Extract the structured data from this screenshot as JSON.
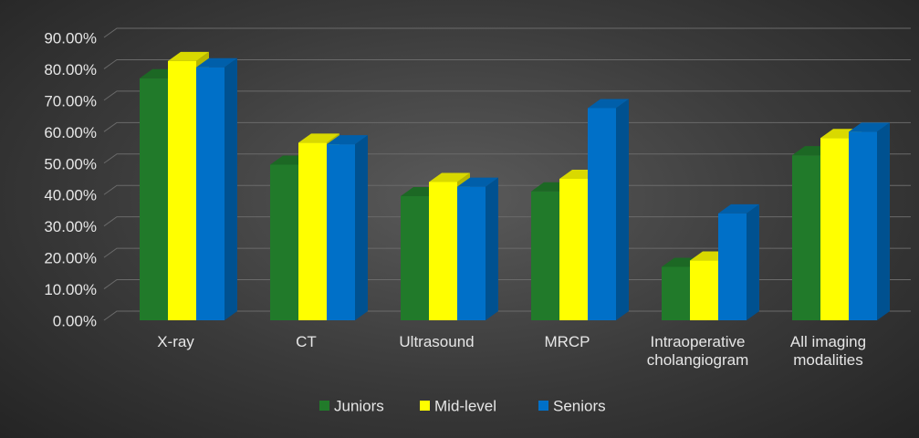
{
  "chart_data": {
    "type": "bar3d",
    "categories": [
      "X-ray",
      "CT",
      "Ultrasound",
      "MRCP",
      "Intraoperative cholangiogram",
      "All imaging modalities"
    ],
    "series": [
      {
        "name": "Juniors",
        "color": "#217a2a",
        "values": [
          77,
          49.5,
          39.5,
          41,
          17,
          52.5
        ]
      },
      {
        "name": "Mid-level",
        "color": "#ffff00",
        "values": [
          82.5,
          56.5,
          44,
          45,
          19,
          58
        ]
      },
      {
        "name": "Seniors",
        "color": "#0070c8",
        "values": [
          80.5,
          56,
          42.5,
          67.5,
          34,
          60
        ]
      }
    ],
    "ylim": [
      0,
      90
    ],
    "yticks": [
      {
        "value": 0,
        "label": "0.00%"
      },
      {
        "value": 10,
        "label": "10.00%"
      },
      {
        "value": 20,
        "label": "20.00%"
      },
      {
        "value": 30,
        "label": "30.00%"
      },
      {
        "value": 40,
        "label": "40.00%"
      },
      {
        "value": 50,
        "label": "50.00%"
      },
      {
        "value": 60,
        "label": "60.00%"
      },
      {
        "value": 70,
        "label": "70.00%"
      },
      {
        "value": 80,
        "label": "80.00%"
      },
      {
        "value": 90,
        "label": "90.00%"
      }
    ],
    "grid": true
  }
}
